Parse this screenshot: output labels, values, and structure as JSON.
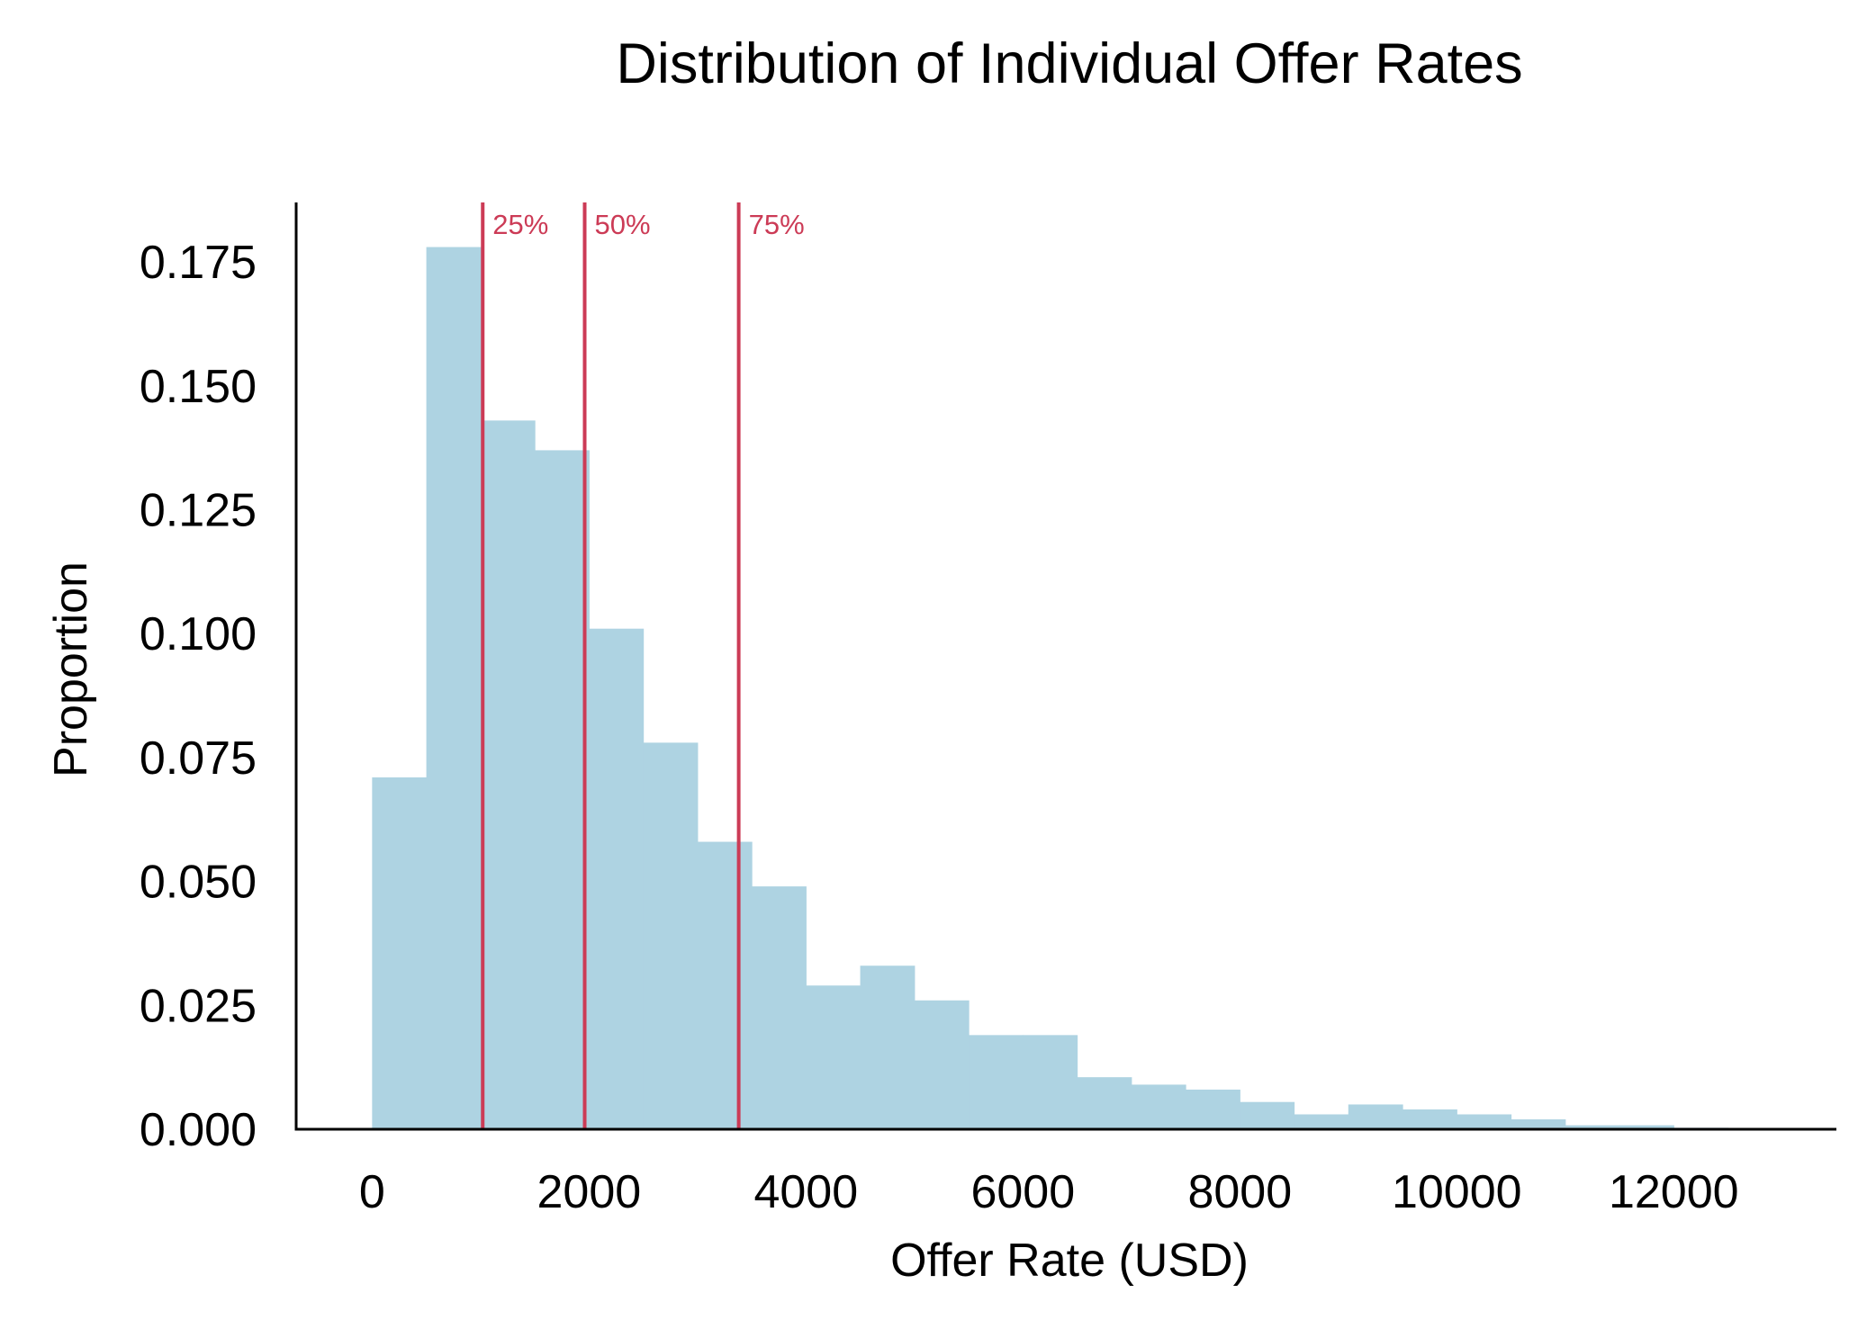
{
  "chart_data": {
    "type": "bar",
    "title": "Distribution of Individual Offer Rates",
    "xlabel": "Offer Rate (USD)",
    "ylabel": "Proportion",
    "xlim": [
      -700,
      13500
    ],
    "ylim": [
      0,
      0.187
    ],
    "xticks": [
      0,
      2000,
      4000,
      6000,
      8000,
      10000,
      12000
    ],
    "xtick_labels": [
      "0",
      "2000",
      "4000",
      "6000",
      "8000",
      "10000",
      "12000"
    ],
    "yticks": [
      0,
      0.025,
      0.05,
      0.075,
      0.1,
      0.125,
      0.15,
      0.175
    ],
    "ytick_labels": [
      "0.000",
      "0.025",
      "0.050",
      "0.075",
      "0.100",
      "0.125",
      "0.150",
      "0.175"
    ],
    "bin_width": 500,
    "bin_starts": [
      0,
      500,
      1000,
      1500,
      2000,
      2500,
      3000,
      3500,
      4000,
      4500,
      5000,
      5500,
      6000,
      6500,
      7000,
      7500,
      8000,
      8500,
      9000,
      9500,
      10000,
      10500,
      11000,
      11500,
      12000
    ],
    "values": [
      0.071,
      0.178,
      0.143,
      0.137,
      0.101,
      0.078,
      0.058,
      0.049,
      0.029,
      0.033,
      0.026,
      0.019,
      0.019,
      0.0105,
      0.009,
      0.008,
      0.0055,
      0.003,
      0.005,
      0.004,
      0.003,
      0.002,
      0.0008,
      0.0008,
      0.0003
    ],
    "quantiles": [
      {
        "label": "25%",
        "x": 1020
      },
      {
        "label": "50%",
        "x": 1960
      },
      {
        "label": "75%",
        "x": 3380
      }
    ],
    "grid": false,
    "colors": {
      "bar": "#aed3e2",
      "quantile": "#cc3b56",
      "axis": "#000000",
      "text": "#000000"
    }
  }
}
